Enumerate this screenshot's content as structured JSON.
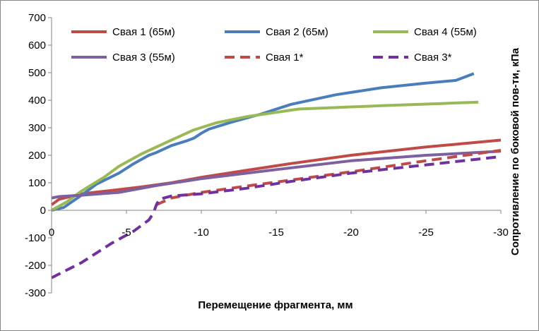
{
  "chart_data": {
    "type": "line",
    "title": "",
    "xlabel": "Перемещение фрагмента, мм",
    "ylabel": "Сопротивление по боковой пов-ти, кПа",
    "xlim": [
      0,
      -30
    ],
    "ylim": [
      -300,
      700
    ],
    "xticks": [
      0,
      -5,
      -10,
      -15,
      -20,
      -25,
      -30
    ],
    "xtick_labels": [
      "0",
      "-5",
      "-10",
      "-15",
      "-20",
      "-25",
      "-30"
    ],
    "yticks": [
      -300,
      -200,
      -100,
      0,
      100,
      200,
      300,
      400,
      500,
      600,
      700
    ],
    "ytick_labels": [
      "-300",
      "-200",
      "-100",
      "0",
      "100",
      "200",
      "300",
      "400",
      "500",
      "600",
      "700"
    ],
    "grid": false,
    "legend_position": "top",
    "series": [
      {
        "name": "Свая 1 (65м)",
        "color": "#be4b48",
        "dash": "solid",
        "points": [
          [
            0,
            20
          ],
          [
            -0.5,
            40
          ],
          [
            -2,
            60
          ],
          [
            -4,
            72
          ],
          [
            -6,
            85
          ],
          [
            -8,
            100
          ],
          [
            -10,
            120
          ],
          [
            -13,
            145
          ],
          [
            -16,
            170
          ],
          [
            -20,
            200
          ],
          [
            -25,
            230
          ],
          [
            -30,
            255
          ]
        ]
      },
      {
        "name": "Свая 2 (65м)",
        "color": "#4a7ebb",
        "dash": "solid",
        "points": [
          [
            0,
            0
          ],
          [
            -0.8,
            10
          ],
          [
            -2,
            55
          ],
          [
            -3,
            95
          ],
          [
            -4.5,
            135
          ],
          [
            -5.5,
            170
          ],
          [
            -6.5,
            200
          ],
          [
            -7,
            210
          ],
          [
            -8,
            235
          ],
          [
            -9,
            252
          ],
          [
            -9.5,
            262
          ],
          [
            -10,
            280
          ],
          [
            -10.5,
            295
          ],
          [
            -12,
            320
          ],
          [
            -14,
            350
          ],
          [
            -16,
            385
          ],
          [
            -19,
            420
          ],
          [
            -22,
            445
          ],
          [
            -25,
            462
          ],
          [
            -27,
            472
          ],
          [
            -28.2,
            497
          ]
        ]
      },
      {
        "name": "Свая 4 (55м)",
        "color": "#98b954",
        "dash": "solid",
        "points": [
          [
            0,
            0
          ],
          [
            -1,
            30
          ],
          [
            -2,
            70
          ],
          [
            -3.5,
            120
          ],
          [
            -4.5,
            160
          ],
          [
            -6,
            205
          ],
          [
            -8,
            255
          ],
          [
            -9.5,
            292
          ],
          [
            -11,
            318
          ],
          [
            -13,
            340
          ],
          [
            -16.5,
            368
          ],
          [
            -22,
            380
          ],
          [
            -26,
            388
          ],
          [
            -28.5,
            393
          ]
        ]
      },
      {
        "name": "Свая 3 (55м)",
        "color": "#7d60a0",
        "dash": "solid",
        "points": [
          [
            0,
            45
          ],
          [
            -0.5,
            50
          ],
          [
            -2,
            55
          ],
          [
            -4.5,
            65
          ],
          [
            -7,
            90
          ],
          [
            -10,
            115
          ],
          [
            -15,
            148
          ],
          [
            -20,
            180
          ],
          [
            -25,
            200
          ],
          [
            -30,
            215
          ]
        ]
      },
      {
        "name": "Свая 1*",
        "color": "#be4b48",
        "dash": "dashed",
        "points": [
          [
            -7,
            20
          ],
          [
            -8,
            45
          ],
          [
            -10,
            65
          ],
          [
            -13,
            88
          ],
          [
            -16,
            110
          ],
          [
            -20,
            140
          ],
          [
            -25,
            180
          ],
          [
            -30,
            218
          ]
        ]
      },
      {
        "name": "Свая 3*",
        "color": "#7030a0",
        "dash": "dashed",
        "points": [
          [
            0,
            -245
          ],
          [
            -2,
            -190
          ],
          [
            -4,
            -120
          ],
          [
            -5.5,
            -75
          ],
          [
            -6.5,
            -35
          ],
          [
            -6.8,
            -10
          ],
          [
            -7,
            20
          ],
          [
            -7.2,
            40
          ],
          [
            -8,
            52
          ],
          [
            -10,
            60
          ],
          [
            -13,
            80
          ],
          [
            -16,
            105
          ],
          [
            -20,
            135
          ],
          [
            -25,
            165
          ],
          [
            -30,
            195
          ]
        ]
      }
    ]
  }
}
